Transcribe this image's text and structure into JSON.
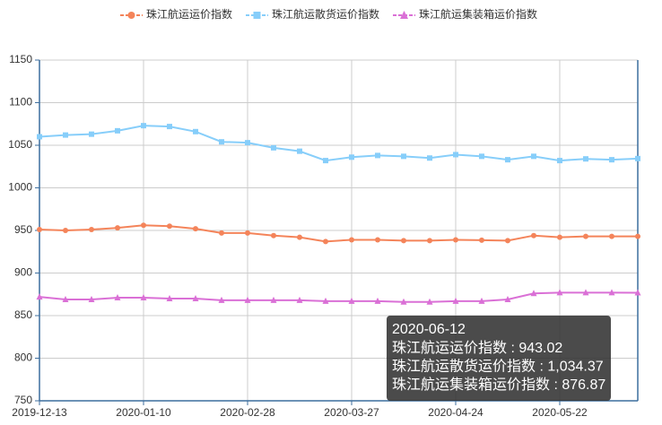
{
  "chart_data": {
    "type": "line",
    "categories": [
      "2019-12-13",
      null,
      null,
      null,
      "2020-01-10",
      null,
      null,
      null,
      "2020-02-28",
      null,
      null,
      null,
      "2020-03-27",
      null,
      null,
      null,
      "2020-04-24",
      null,
      null,
      null,
      "2020-05-22",
      null,
      null,
      null
    ],
    "series": [
      {
        "name": "珠江航运运价指数",
        "color": "#f4845a",
        "marker": "circle",
        "values": [
          951,
          950,
          951,
          953,
          956,
          955,
          952,
          947,
          947,
          944,
          942,
          937,
          939,
          939,
          938,
          938,
          939,
          938.5,
          938,
          944,
          942,
          943,
          943,
          943.02
        ]
      },
      {
        "name": "珠江航运散货运价指数",
        "color": "#87cefa",
        "marker": "square",
        "values": [
          1060,
          1062,
          1063,
          1067,
          1073,
          1072,
          1066,
          1054,
          1053,
          1047,
          1043,
          1032,
          1036,
          1038,
          1037,
          1035,
          1039,
          1037,
          1033,
          1037,
          1032,
          1034,
          1033,
          1034.37
        ]
      },
      {
        "name": "珠江航运集装箱运价指数",
        "color": "#da70d6",
        "marker": "triangle",
        "values": [
          872,
          869,
          869,
          871,
          871,
          870,
          870,
          868,
          868,
          868,
          868,
          867,
          867,
          867,
          866,
          866,
          867,
          867,
          869,
          876,
          877,
          877,
          877,
          876.87
        ]
      }
    ],
    "ylim": [
      750,
      1150
    ],
    "yticks": [
      750,
      800,
      850,
      900,
      950,
      1000,
      1050,
      1100,
      1150
    ],
    "grid": true,
    "legend": "top",
    "tooltip": {
      "title": "2020-06-12",
      "value_labels": [
        "943.02",
        "1,034.37",
        "876.87"
      ]
    }
  }
}
